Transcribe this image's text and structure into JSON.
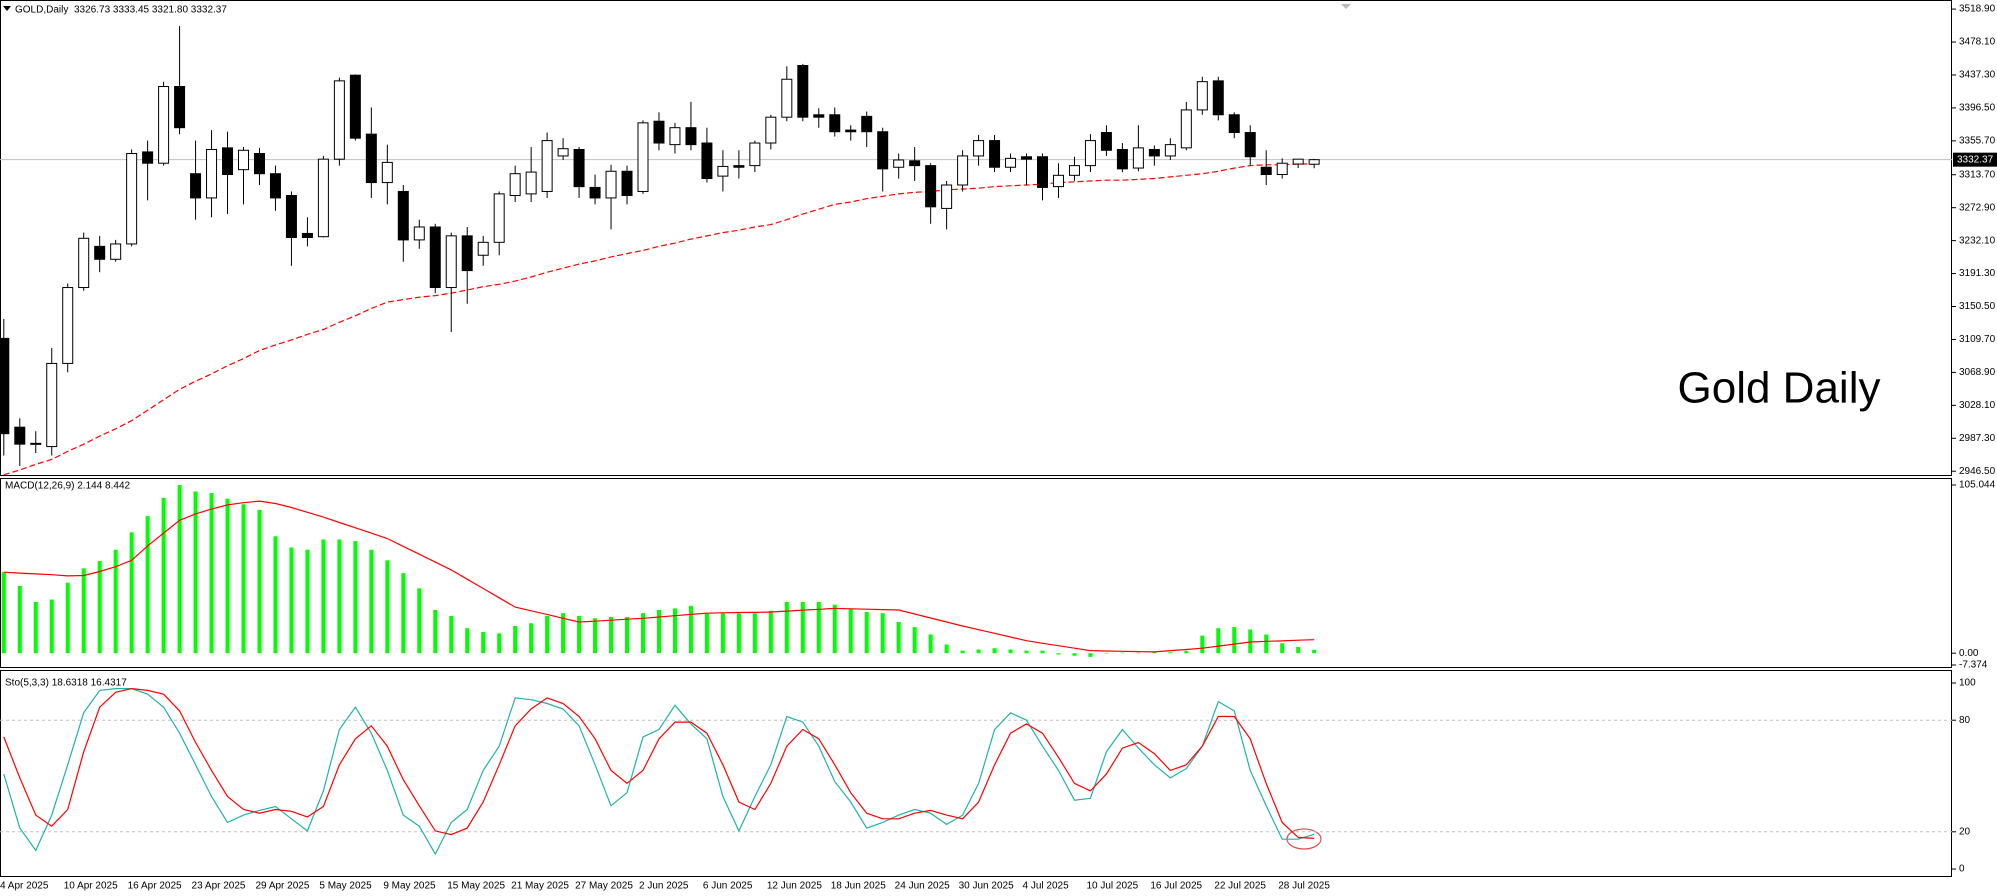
{
  "chart_data": [
    {
      "type": "candlestick",
      "title": "GOLD,Daily",
      "ohlc_label": "3326.73 3333.45 3321.80 3332.37",
      "annotation": "Gold Daily",
      "up_color": "#ffffff",
      "down_color": "#000000",
      "open": [
        3111,
        3001,
        2981,
        2977,
        3080,
        3174,
        3225,
        3209,
        3228,
        3342,
        3328,
        3423,
        3315,
        3285,
        3347,
        3320,
        3340,
        3315,
        3288,
        3241,
        3237,
        3333,
        3437,
        3364,
        3304,
        3293,
        3233,
        3249,
        3174,
        3238,
        3214,
        3230,
        3288,
        3290,
        3293,
        3337,
        3345,
        3298,
        3285,
        3318,
        3293,
        3380,
        3351,
        3372,
        3353,
        3312,
        3325,
        3325,
        3353,
        3385,
        3449,
        3388,
        3388,
        3369,
        3386,
        3367,
        3323,
        3331,
        3325,
        3272,
        3301,
        3337,
        3356,
        3323,
        3336,
        3336,
        3299,
        3313,
        3325,
        3366,
        3345,
        3322,
        3345,
        3337,
        3347,
        3394,
        3430,
        3388,
        3366,
        3323,
        3314,
        3327,
        3326.73
      ],
      "high": [
        3135,
        3012,
        2996,
        3099,
        3179,
        3242,
        3238,
        3233,
        3345,
        3356,
        3429,
        3498,
        3356,
        3369,
        3367,
        3348,
        3347,
        3325,
        3293,
        3261,
        3337,
        3434,
        3438,
        3397,
        3351,
        3301,
        3258,
        3253,
        3242,
        3249,
        3238,
        3293,
        3325,
        3348,
        3366,
        3359,
        3348,
        3314,
        3326,
        3325,
        3381,
        3391,
        3378,
        3404,
        3372,
        3344,
        3344,
        3356,
        3388,
        3448,
        3451,
        3396,
        3397,
        3375,
        3392,
        3372,
        3340,
        3348,
        3328,
        3306,
        3344,
        3363,
        3363,
        3340,
        3340,
        3340,
        3328,
        3336,
        3364,
        3375,
        3353,
        3375,
        3350,
        3359,
        3404,
        3435,
        3435,
        3391,
        3375,
        3344,
        3334,
        3333,
        3333.45
      ],
      "low": [
        2966,
        2953,
        2969,
        2966,
        3069,
        3170,
        3193,
        3206,
        3225,
        3282,
        3325,
        3364,
        3258,
        3261,
        3265,
        3277,
        3301,
        3269,
        3201,
        3225,
        3236,
        3325,
        3356,
        3285,
        3277,
        3206,
        3222,
        3167,
        3119,
        3154,
        3201,
        3214,
        3280,
        3280,
        3285,
        3332,
        3285,
        3277,
        3246,
        3277,
        3290,
        3344,
        3340,
        3344,
        3304,
        3293,
        3309,
        3317,
        3345,
        3380,
        3380,
        3372,
        3361,
        3356,
        3348,
        3293,
        3309,
        3306,
        3253,
        3246,
        3293,
        3325,
        3317,
        3317,
        3301,
        3282,
        3285,
        3306,
        3317,
        3337,
        3317,
        3318,
        3325,
        3332,
        3344,
        3388,
        3381,
        3359,
        3325,
        3301,
        3309,
        3322,
        3321.8
      ],
      "close": [
        2993,
        2980,
        2980,
        3080,
        3174,
        3235,
        3209,
        3228,
        3340,
        3328,
        3423,
        3372,
        3285,
        3345,
        3314,
        3344,
        3315,
        3285,
        3236,
        3236,
        3333,
        3430,
        3359,
        3304,
        3329,
        3233,
        3249,
        3174,
        3238,
        3195,
        3230,
        3290,
        3315,
        3317,
        3356,
        3346,
        3299,
        3285,
        3318,
        3288,
        3378,
        3353,
        3372,
        3351,
        3309,
        3324,
        3323,
        3353,
        3385,
        3432,
        3385,
        3385,
        3367,
        3367,
        3367,
        3321,
        3332,
        3325,
        3274,
        3301,
        3337,
        3356,
        3323,
        3334,
        3333,
        3298,
        3313,
        3325,
        3356,
        3344,
        3321,
        3347,
        3337,
        3351,
        3394,
        3429,
        3388,
        3366,
        3336,
        3314,
        3328,
        3333,
        3332.37
      ],
      "ma": {
        "color": "#ff0000",
        "values": [
          2942,
          2948,
          2955,
          2961,
          2971,
          2980,
          2990,
          2999,
          3009,
          3022,
          3035,
          3048,
          3058,
          3067,
          3077,
          3086,
          3096,
          3103,
          3109,
          3116,
          3122,
          3131,
          3139,
          3148,
          3156,
          3159,
          3162,
          3164,
          3167,
          3171,
          3175,
          3178,
          3182,
          3187,
          3193,
          3198,
          3203,
          3207,
          3212,
          3216,
          3220,
          3225,
          3229,
          3234,
          3238,
          3242,
          3245,
          3249,
          3252,
          3258,
          3265,
          3271,
          3277,
          3280,
          3284,
          3287,
          3290,
          3292,
          3293,
          3295,
          3296,
          3297,
          3299,
          3300,
          3301,
          3302,
          3304,
          3305,
          3306,
          3307,
          3307,
          3308,
          3309,
          3311,
          3313,
          3315,
          3318,
          3322,
          3325,
          3326,
          3326,
          3327,
          3327
        ]
      },
      "current_price": 3332.37,
      "ylim": [
        2941.8,
        3525.2
      ],
      "yticks": [
        {
          "value": 3518.9,
          "label": "3518.90"
        },
        {
          "value": 3478.1,
          "label": "3478.10"
        },
        {
          "value": 3437.3,
          "label": "3437.30"
        },
        {
          "value": 3396.5,
          "label": "3396.50"
        },
        {
          "value": 3355.7,
          "label": "3355.70"
        },
        {
          "value": 3313.7,
          "label": "3313.70"
        },
        {
          "value": 3272.9,
          "label": "3272.90"
        },
        {
          "value": 3232.1,
          "label": "3232.10"
        },
        {
          "value": 3191.3,
          "label": "3191.30"
        },
        {
          "value": 3150.5,
          "label": "3150.50"
        },
        {
          "value": 3109.7,
          "label": "3109.70"
        },
        {
          "value": 3068.9,
          "label": "3068.90"
        },
        {
          "value": 3028.1,
          "label": "3028.10"
        },
        {
          "value": 2987.3,
          "label": "2987.30"
        },
        {
          "value": 2946.5,
          "label": "2946.50"
        }
      ]
    },
    {
      "type": "bar",
      "title": "MACD(12,26,9) 2.144 8.442",
      "series": [
        {
          "type": "bar",
          "color": "#00ff00",
          "values": [
            50.6,
            42,
            32,
            33.5,
            44,
            53,
            57.6,
            64.6,
            75.5,
            85.6,
            97,
            105,
            101,
            100,
            96.5,
            93,
            89.5,
            73,
            66,
            64.6,
            71,
            71,
            70,
            64.6,
            58,
            50,
            40.5,
            27,
            23.3,
            15.6,
            13.2,
            12.4,
            17,
            18.7,
            23.3,
            25,
            23.3,
            21.8,
            22.6,
            22.6,
            25,
            27,
            28,
            29.6,
            25,
            25,
            25,
            25,
            26.5,
            32,
            32,
            32,
            30.3,
            28,
            25.7,
            25,
            19.5,
            16.3,
            11.7,
            5.4,
            1.6,
            2.3,
            3.1,
            2.3,
            1.6,
            1.6,
            -0.8,
            -1.6,
            -2.3,
            0.2,
            0.3,
            0.2,
            0.5,
            0.6,
            1.5,
            11,
            15.6,
            16.3,
            14.8,
            11.7,
            6.2,
            3.9,
            2.144
          ]
        },
        {
          "type": "line",
          "color": "#ff0000",
          "values": [
            50.6,
            50,
            49.5,
            49,
            48.3,
            48.5,
            51,
            54,
            58,
            67,
            75,
            83,
            87,
            90,
            92.6,
            94,
            95,
            93.5,
            91,
            88,
            85,
            81.6,
            78.3,
            75,
            71.6,
            66.7,
            61.8,
            56.9,
            52,
            46.2,
            40.4,
            34.6,
            28.8,
            26.5,
            24.2,
            21.8,
            19.5,
            20,
            20.6,
            21.2,
            21.8,
            22.6,
            23.4,
            24.2,
            25,
            25.2,
            25.4,
            25.5,
            25.7,
            26.3,
            26.9,
            27.4,
            28,
            27.7,
            27.5,
            27.2,
            27,
            24.5,
            22,
            19.5,
            17,
            14.7,
            12.4,
            10.1,
            7.8,
            6.2,
            4.7,
            3.1,
            1.6,
            1.4,
            1.2,
            1,
            0.8,
            1.6,
            2.3,
            3.1,
            4.4,
            5.7,
            7,
            7.4,
            7.7,
            8.1,
            8.442
          ]
        }
      ],
      "ylim": [
        -7.374,
        105.044
      ],
      "yticks": [
        105.044,
        {
          "value": 0,
          "label": "0.00"
        },
        -7.374
      ]
    },
    {
      "type": "line",
      "title": "Sto(5,3,3) 18.6318 16.4317",
      "categories": [
        "4 Apr 2025",
        null,
        null,
        null,
        "10 Apr 2025",
        null,
        null,
        null,
        "16 Apr 2025",
        null,
        null,
        null,
        "23 Apr 2025",
        null,
        null,
        null,
        "29 Apr 2025",
        null,
        null,
        null,
        "5 May 2025",
        null,
        null,
        null,
        "9 May 2025",
        null,
        null,
        null,
        "15 May 2025",
        null,
        null,
        null,
        "21 May 2025",
        null,
        null,
        null,
        "27 May 2025",
        null,
        null,
        null,
        "2 Jun 2025",
        null,
        null,
        null,
        "6 Jun 2025",
        null,
        null,
        null,
        "12 Jun 2025",
        null,
        null,
        null,
        "18 Jun 2025",
        null,
        null,
        null,
        "24 Jun 2025",
        null,
        null,
        null,
        "30 Jun 2025",
        null,
        null,
        null,
        "4 Jul 2025",
        null,
        null,
        null,
        "10 Jul 2025",
        null,
        null,
        null,
        "16 Jul 2025",
        null,
        null,
        null,
        "22 Jul 2025",
        null,
        null,
        null,
        "28 Jul 2025",
        null,
        null
      ],
      "series": [
        {
          "color": "#20b2aa",
          "values": [
            51,
            22,
            10,
            29,
            56,
            84,
            96,
            97,
            97,
            94,
            87,
            73,
            56,
            39,
            25,
            29,
            31.5,
            33.6,
            27,
            20.5,
            42,
            75,
            87,
            73,
            53,
            29,
            23,
            8,
            25,
            32,
            53,
            66,
            92,
            91,
            89,
            86,
            77,
            56,
            34,
            41,
            71,
            75,
            88,
            78,
            70,
            39,
            20.5,
            39,
            56,
            82,
            79,
            66,
            47,
            36,
            22,
            25,
            29,
            32,
            30,
            24,
            29,
            46,
            75,
            84,
            80,
            66,
            53,
            37,
            38,
            63,
            75,
            65,
            56,
            49,
            54,
            66,
            90,
            85,
            53,
            34,
            16,
            16,
            18.6318
          ]
        },
        {
          "color": "#ff0000",
          "values": [
            71,
            49,
            29,
            23,
            32,
            63,
            87,
            95,
            97,
            96,
            94,
            85,
            68,
            53,
            39,
            32,
            30,
            32,
            31,
            28,
            33.6,
            56,
            70,
            77,
            66,
            48,
            34,
            20.5,
            18.5,
            22,
            36,
            56,
            77,
            86,
            92,
            89,
            82,
            70,
            53,
            46,
            53,
            70,
            79,
            79,
            73,
            56,
            36,
            32,
            46,
            66,
            75,
            70,
            56,
            41,
            30,
            27,
            27,
            30,
            31.5,
            29,
            27,
            36,
            56,
            73,
            78,
            73,
            60,
            46,
            42,
            51,
            65,
            68,
            62,
            53,
            56,
            66,
            82,
            82,
            70,
            46,
            25,
            17,
            16.4317
          ]
        }
      ],
      "levels": [
        20,
        80
      ],
      "ylim": [
        0,
        100
      ],
      "yticks": [
        100,
        80,
        20,
        0
      ]
    }
  ]
}
